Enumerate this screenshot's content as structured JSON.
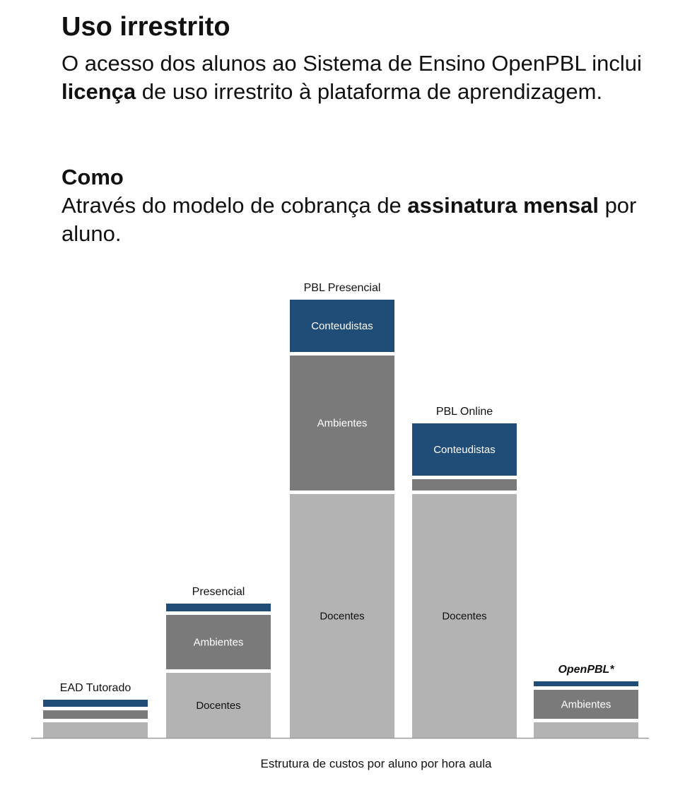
{
  "intro": {
    "title": "Uso irrestrito",
    "paragraph": {
      "part1": "O acesso dos alunos ao Sistema de Ensino OpenPBL inclui ",
      "bold": "licença",
      "part2": " de uso irrestrito à plataforma de aprendizagem."
    }
  },
  "how": {
    "title": "Como",
    "paragraph": {
      "part1": "Através do modelo de cobrança de ",
      "bold": "assinatura mensal",
      "part2": " por aluno."
    }
  },
  "colors": {
    "Conteudistas": "#204d78",
    "Ambientes": "#7a7a7a",
    "Docentes": "#b3b3b3"
  },
  "chart_data": {
    "type": "bar",
    "stacked": true,
    "categories": [
      "EAD Tutorado",
      "Presencial",
      "PBL Presencial",
      "PBL Online",
      "OpenPBL*"
    ],
    "series": [
      {
        "name": "Docentes",
        "values": [
          22,
          92,
          345,
          345,
          22
        ]
      },
      {
        "name": "Ambientes",
        "values": [
          12,
          77,
          191,
          16,
          41
        ]
      },
      {
        "name": "Conteudistas",
        "values": [
          10,
          11,
          74,
          74,
          7
        ]
      }
    ],
    "segment_labels": {
      "Docentes": [
        "",
        "Docentes",
        "Docentes",
        "Docentes",
        ""
      ],
      "Ambientes": [
        "",
        "Ambientes",
        "Ambientes",
        "",
        "Ambientes"
      ],
      "Conteudistas": [
        "",
        "",
        "Conteudistas",
        "Conteudistas",
        ""
      ]
    },
    "xlabel": "Estrutura de custos por aluno por hora aula",
    "ylabel": "",
    "ylim": [
      0,
      620
    ],
    "grid": false,
    "legend": "none"
  }
}
